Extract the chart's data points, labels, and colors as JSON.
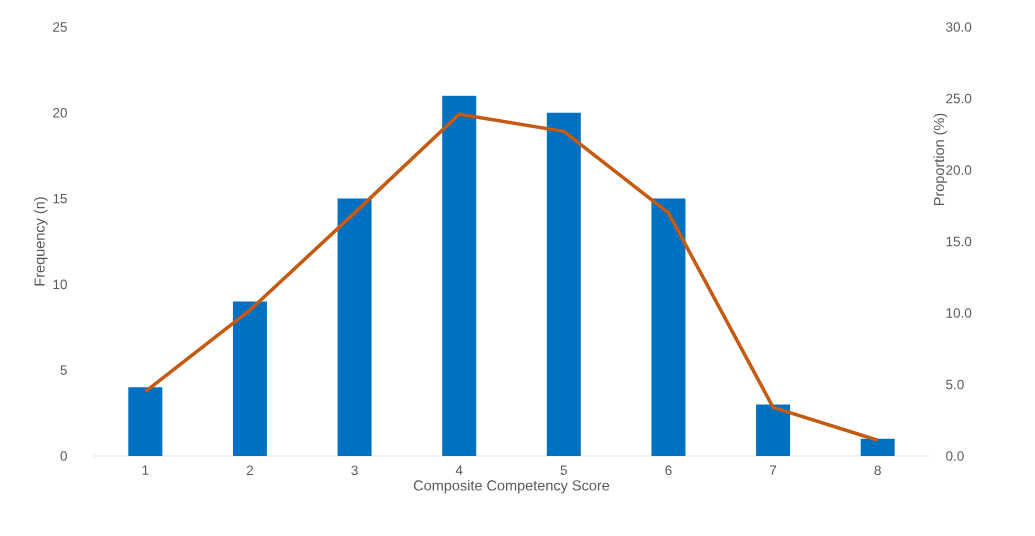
{
  "chart_data": {
    "type": "bar",
    "categories": [
      "1",
      "2",
      "3",
      "4",
      "5",
      "6",
      "7",
      "8"
    ],
    "xlabel": "Composite Competency Score",
    "ylabel": "Frequency (n)",
    "y2label": "Proportion (%)",
    "ylim": [
      0,
      25
    ],
    "yticks": [
      0,
      5,
      10,
      15,
      20,
      25
    ],
    "y2lim": [
      0,
      30
    ],
    "y2ticks": [
      {
        "value": 0,
        "label": "0.0"
      },
      {
        "value": 5,
        "label": "5.0"
      },
      {
        "value": 10,
        "label": "10.0"
      },
      {
        "value": 15,
        "label": "15.0"
      },
      {
        "value": 20,
        "label": "20.0"
      },
      {
        "value": 25,
        "label": "25.0"
      },
      {
        "value": 30,
        "label": "30.0"
      }
    ],
    "series": [
      {
        "color": "#0070c0",
        "values": [
          4,
          9,
          15,
          21,
          20,
          15,
          3,
          1
        ]
      },
      {
        "type": "line",
        "axis": "y2",
        "color": "#c55a11",
        "values": [
          4.5,
          10.2,
          17.0,
          23.9,
          22.7,
          17.0,
          3.4,
          1.1
        ]
      }
    ]
  }
}
